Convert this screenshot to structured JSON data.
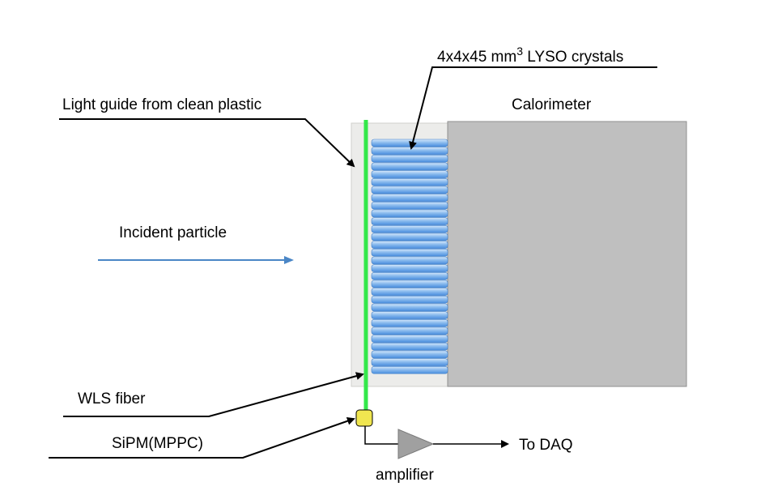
{
  "labels": {
    "crystals_prefix": "4x4x45 mm",
    "crystals_exponent": "3",
    "crystals_suffix": " LYSO crystals",
    "light_guide": "Light guide from clean plastic",
    "calorimeter": "Calorimeter",
    "incident_particle": "Incident particle",
    "wls_fiber": "WLS fiber",
    "sipm": "SiPM(MPPC)",
    "to_daq": "To DAQ",
    "amplifier": "amplifier"
  },
  "colors": {
    "fiber": "#33e84a",
    "crystal_light": "#cfe3f8",
    "crystal_dark": "#5a9be0",
    "calorimeter": "#bfbfbf",
    "light_guide": "#ececea",
    "sipm": "#f0e650",
    "amplifier": "#a0a0a0",
    "particle_arrow": "#4a86c6"
  },
  "crystal_count": 30
}
